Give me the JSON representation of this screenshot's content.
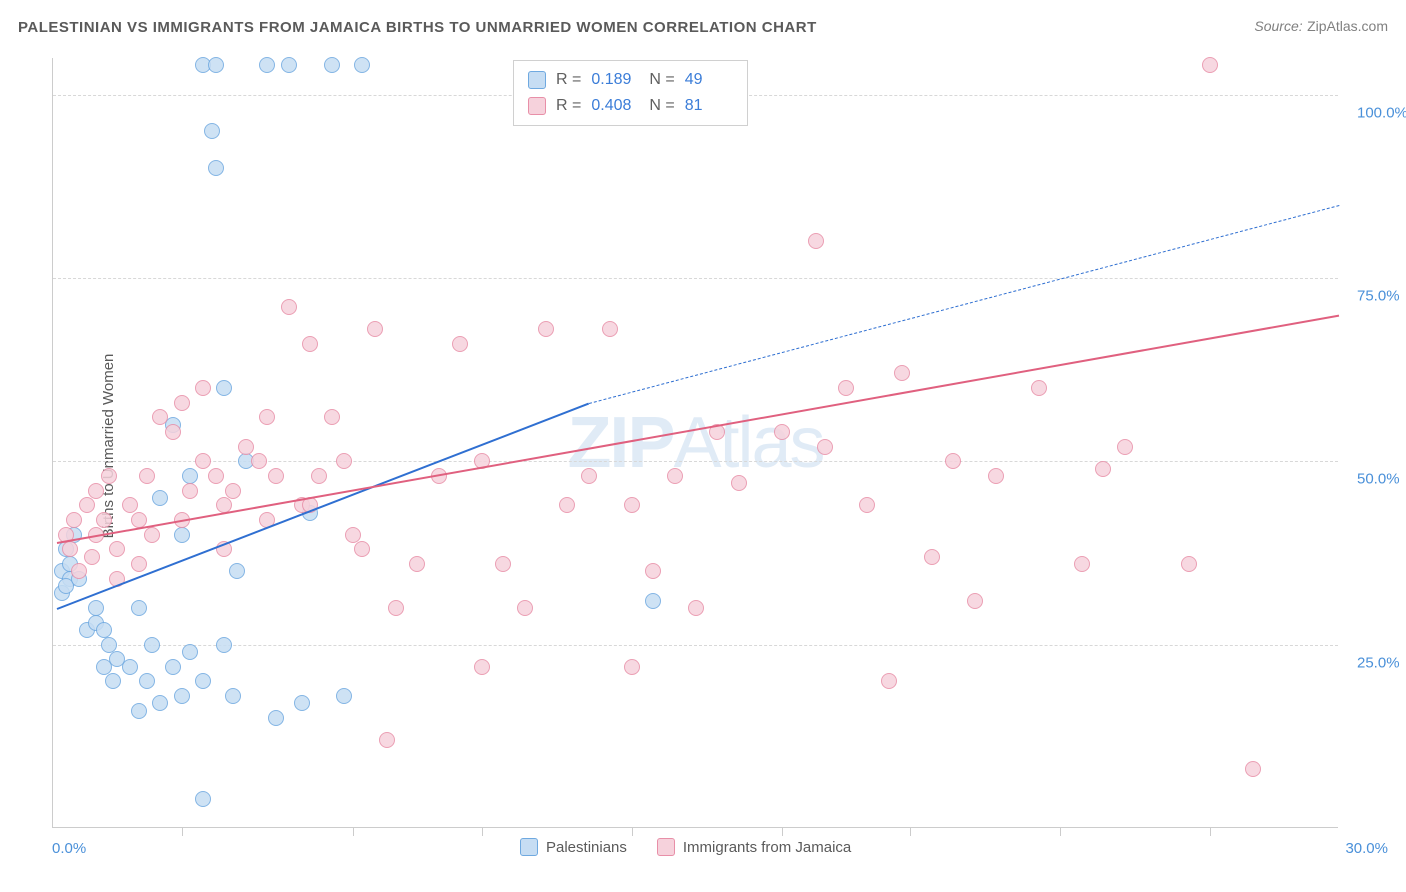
{
  "title": "PALESTINIAN VS IMMIGRANTS FROM JAMAICA BIRTHS TO UNMARRIED WOMEN CORRELATION CHART",
  "source_label": "Source:",
  "source_value": "ZipAtlas.com",
  "watermark": "ZIPAtlas",
  "y_axis_title": "Births to Unmarried Women",
  "chart": {
    "type": "scatter",
    "xlim": [
      0,
      30
    ],
    "ylim": [
      0,
      105
    ],
    "x_ticks": [
      0,
      30
    ],
    "x_tick_labels": [
      "0.0%",
      "30.0%"
    ],
    "x_tick_positions_approx": [
      3,
      7,
      10,
      13.5,
      17,
      20,
      23.5,
      27
    ],
    "y_ticks": [
      25,
      50,
      75,
      100
    ],
    "y_tick_labels": [
      "25.0%",
      "50.0%",
      "75.0%",
      "100.0%"
    ],
    "grid_color": "#d8d8d8",
    "background_color": "#ffffff",
    "axis_color": "#cccccc",
    "tick_label_color": "#4a90d9",
    "tick_label_fontsize": 15,
    "marker_size": 16,
    "marker_stroke_width": 1.2,
    "series": [
      {
        "name": "Palestinians",
        "fill": "#c6ddf3",
        "stroke": "#6fa9e0",
        "r_label": "R =",
        "r_value": "0.189",
        "n_label": "N =",
        "n_value": "49",
        "trend": {
          "x1": 0.1,
          "y1": 30,
          "x2": 12.5,
          "y2": 58,
          "x2_dash": 30,
          "y2_dash": 85,
          "color": "#2f6fd1",
          "width": 2.5
        },
        "points": [
          [
            0.2,
            35
          ],
          [
            0.3,
            38
          ],
          [
            0.4,
            34
          ],
          [
            0.2,
            32
          ],
          [
            0.5,
            40
          ],
          [
            0.4,
            36
          ],
          [
            0.3,
            33
          ],
          [
            0.6,
            34
          ],
          [
            0.8,
            27
          ],
          [
            1.0,
            28
          ],
          [
            1.2,
            22
          ],
          [
            1.3,
            25
          ],
          [
            1.0,
            30
          ],
          [
            1.5,
            23
          ],
          [
            1.2,
            27
          ],
          [
            1.4,
            20
          ],
          [
            1.8,
            22
          ],
          [
            2.0,
            16
          ],
          [
            2.2,
            20
          ],
          [
            2.5,
            17
          ],
          [
            2.3,
            25
          ],
          [
            2.0,
            30
          ],
          [
            2.8,
            22
          ],
          [
            2.5,
            45
          ],
          [
            3.0,
            18
          ],
          [
            3.2,
            24
          ],
          [
            3.5,
            20
          ],
          [
            3.0,
            40
          ],
          [
            3.2,
            48
          ],
          [
            3.5,
            104
          ],
          [
            3.8,
            104
          ],
          [
            4.0,
            25
          ],
          [
            4.2,
            18
          ],
          [
            4.5,
            50
          ],
          [
            4.0,
            60
          ],
          [
            4.3,
            35
          ],
          [
            3.8,
            90
          ],
          [
            3.7,
            95
          ],
          [
            5.0,
            104
          ],
          [
            5.5,
            104
          ],
          [
            5.2,
            15
          ],
          [
            5.8,
            17
          ],
          [
            6.0,
            43
          ],
          [
            6.5,
            104
          ],
          [
            6.8,
            18
          ],
          [
            7.2,
            104
          ],
          [
            3.5,
            4
          ],
          [
            2.8,
            55
          ],
          [
            14.0,
            31
          ]
        ]
      },
      {
        "name": "Immigants from Jamaica",
        "display_name": "Immigrants from Jamaica",
        "fill": "#f6d2dc",
        "stroke": "#e88fa8",
        "r_label": "R =",
        "r_value": "0.408",
        "n_label": "N =",
        "n_value": "81",
        "trend": {
          "x1": 0.1,
          "y1": 39,
          "x2": 30,
          "y2": 70,
          "color": "#e0607f",
          "width": 2.5
        },
        "points": [
          [
            0.3,
            40
          ],
          [
            0.5,
            42
          ],
          [
            0.8,
            44
          ],
          [
            0.4,
            38
          ],
          [
            0.6,
            35
          ],
          [
            1.0,
            40
          ],
          [
            1.2,
            42
          ],
          [
            1.5,
            38
          ],
          [
            1.0,
            46
          ],
          [
            1.3,
            48
          ],
          [
            1.8,
            44
          ],
          [
            2.0,
            42
          ],
          [
            2.2,
            48
          ],
          [
            2.5,
            56
          ],
          [
            2.3,
            40
          ],
          [
            2.8,
            54
          ],
          [
            3.0,
            42
          ],
          [
            3.2,
            46
          ],
          [
            3.5,
            50
          ],
          [
            3.0,
            58
          ],
          [
            3.8,
            48
          ],
          [
            3.5,
            60
          ],
          [
            4.0,
            44
          ],
          [
            4.2,
            46
          ],
          [
            4.5,
            52
          ],
          [
            4.8,
            50
          ],
          [
            5.0,
            56
          ],
          [
            5.2,
            48
          ],
          [
            5.5,
            71
          ],
          [
            5.8,
            44
          ],
          [
            6.0,
            66
          ],
          [
            6.2,
            48
          ],
          [
            6.5,
            56
          ],
          [
            6.8,
            50
          ],
          [
            7.0,
            40
          ],
          [
            7.2,
            38
          ],
          [
            7.5,
            68
          ],
          [
            7.8,
            12
          ],
          [
            8.0,
            30
          ],
          [
            8.5,
            36
          ],
          [
            9.0,
            48
          ],
          [
            9.5,
            66
          ],
          [
            10.0,
            22
          ],
          [
            10.0,
            50
          ],
          [
            10.5,
            36
          ],
          [
            11.0,
            30
          ],
          [
            11.5,
            68
          ],
          [
            12.0,
            44
          ],
          [
            12.5,
            48
          ],
          [
            13.0,
            68
          ],
          [
            13.5,
            44
          ],
          [
            13.5,
            22
          ],
          [
            14.0,
            35
          ],
          [
            14.5,
            48
          ],
          [
            15.0,
            30
          ],
          [
            15.5,
            54
          ],
          [
            16.0,
            47
          ],
          [
            17.0,
            54
          ],
          [
            17.8,
            80
          ],
          [
            18.0,
            52
          ],
          [
            18.5,
            60
          ],
          [
            19.0,
            44
          ],
          [
            19.5,
            20
          ],
          [
            19.8,
            62
          ],
          [
            20.5,
            37
          ],
          [
            21.0,
            50
          ],
          [
            21.5,
            31
          ],
          [
            22.0,
            48
          ],
          [
            23.0,
            60
          ],
          [
            24.0,
            36
          ],
          [
            24.5,
            49
          ],
          [
            25.0,
            52
          ],
          [
            26.5,
            36
          ],
          [
            27.0,
            104
          ],
          [
            28.0,
            8
          ],
          [
            4.0,
            38
          ],
          [
            5.0,
            42
          ],
          [
            6.0,
            44
          ],
          [
            2.0,
            36
          ],
          [
            1.5,
            34
          ],
          [
            0.9,
            37
          ]
        ]
      }
    ]
  },
  "legend_bottom": {
    "items": [
      {
        "label": "Palestinians",
        "fill": "#c6ddf3",
        "stroke": "#6fa9e0"
      },
      {
        "label": "Immigrants from Jamaica",
        "fill": "#f6d2dc",
        "stroke": "#e88fa8"
      }
    ]
  }
}
